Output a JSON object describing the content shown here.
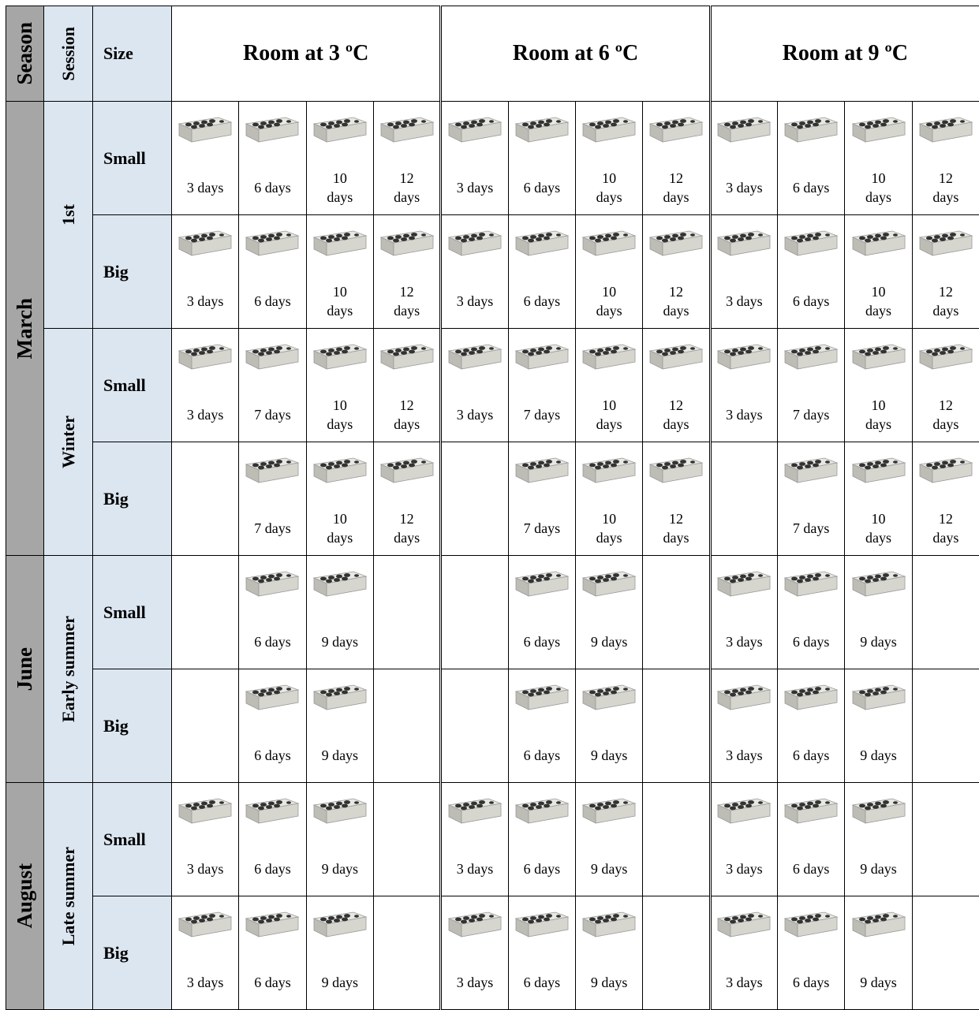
{
  "header": {
    "season": "Season",
    "session": "Session",
    "size": "Size",
    "rooms": [
      "Room at 3 ºC",
      "Room at 6 ºC",
      "Room at 9 ºC"
    ]
  },
  "seasons": [
    "March",
    "June",
    "August"
  ],
  "sessions": [
    "1st",
    "Winter",
    "Early summer",
    "Late summer"
  ],
  "rows": [
    {
      "size": "Small",
      "cells": [
        "3 days",
        "6 days",
        "10 days",
        "12 days",
        "3 days",
        "6 days",
        "10 days",
        "12 days",
        "3 days",
        "6 days",
        "10 days",
        "12 days"
      ]
    },
    {
      "size": "Big",
      "cells": [
        "3 days",
        "6 days",
        "10 days",
        "12 days",
        "3 days",
        "6 days",
        "10 days",
        "12 days",
        "3 days",
        "6 days",
        "10 days",
        "12 days"
      ]
    },
    {
      "size": "Small",
      "cells": [
        "3 days",
        "7 days",
        "10 days",
        "12 days",
        "3 days",
        "7 days",
        "10 days",
        "12 days",
        "3 days",
        "7 days",
        "10 days",
        "12 days"
      ]
    },
    {
      "size": "Big",
      "cells": [
        null,
        "7 days",
        "10 days",
        "12 days",
        null,
        "7 days",
        "10 days",
        "12 days",
        null,
        "7 days",
        "10 days",
        "12 days"
      ]
    },
    {
      "size": "Small",
      "cells": [
        null,
        "6 days",
        "9 days",
        null,
        null,
        "6 days",
        "9 days",
        null,
        "3 days",
        "6 days",
        "9 days",
        null
      ]
    },
    {
      "size": "Big",
      "cells": [
        null,
        "6 days",
        "9 days",
        null,
        null,
        "6 days",
        "9 days",
        null,
        "3 days",
        "6 days",
        "9 days",
        null
      ]
    },
    {
      "size": "Small",
      "cells": [
        "3 days",
        "6 days",
        "9 days",
        null,
        "3 days",
        "6 days",
        "9 days",
        null,
        "3 days",
        "6 days",
        "9 days",
        null
      ]
    },
    {
      "size": "Big",
      "cells": [
        "3 days",
        "6 days",
        "9 days",
        null,
        "3 days",
        "6 days",
        "9 days",
        null,
        "3 days",
        "6 days",
        "9 days",
        null
      ]
    }
  ]
}
